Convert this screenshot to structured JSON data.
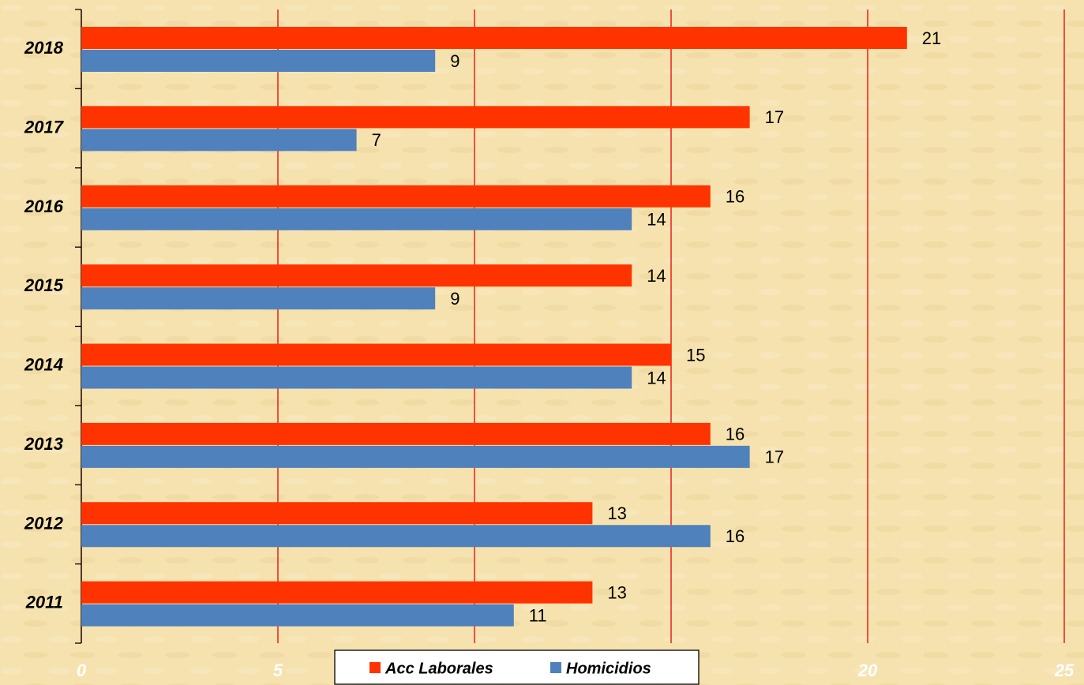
{
  "chart_data": {
    "type": "barh",
    "categories": [
      "2018",
      "2017",
      "2016",
      "2015",
      "2014",
      "2013",
      "2012",
      "2011"
    ],
    "series": [
      {
        "name": "Acc Laborales",
        "color": "#ff3300",
        "values": [
          21,
          17,
          16,
          14,
          15,
          16,
          13,
          13
        ]
      },
      {
        "name": "Homicidios",
        "color": "#4f81bd",
        "values": [
          9,
          7,
          14,
          9,
          14,
          17,
          16,
          11
        ]
      }
    ],
    "xlim": [
      0,
      25
    ],
    "xticks": [
      0,
      5,
      10,
      15,
      20,
      25
    ],
    "grid": true,
    "grid_color": "#ee0000",
    "legend": "bottom"
  }
}
